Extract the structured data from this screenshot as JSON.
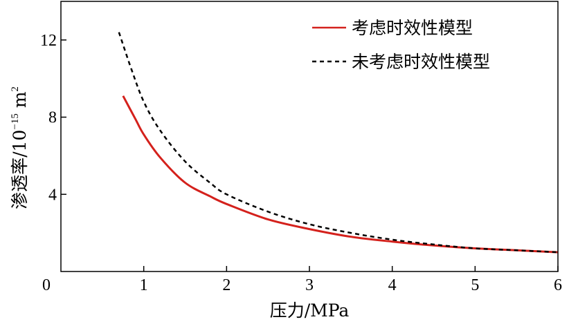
{
  "chart_data": {
    "type": "line",
    "xlabel": "压力/MPa",
    "ylabel_main": "渗透率/10",
    "ylabel_exponent": "−15",
    "ylabel_unit": " m",
    "ylabel_unit_power": "2",
    "xlim": [
      0,
      6
    ],
    "ylim": [
      0,
      14
    ],
    "x_ticks": [
      1,
      2,
      3,
      4,
      5,
      6
    ],
    "x_tick_labels": [
      "1",
      "2",
      "3",
      "4",
      "5",
      "6"
    ],
    "y_ticks": [
      4,
      8,
      12
    ],
    "y_tick_labels": [
      "4",
      "8",
      "12"
    ],
    "origin_label": "0",
    "legend_position": "top-right",
    "grid": false,
    "series": [
      {
        "name": "考虑时效性模型",
        "color": "#d4211c",
        "style": "solid",
        "x": [
          0.75,
          0.9,
          1.0,
          1.2,
          1.5,
          1.8,
          2.0,
          2.5,
          3.0,
          3.5,
          4.0,
          4.5,
          5.0,
          5.5,
          6.0
        ],
        "y": [
          9.1,
          7.9,
          7.1,
          5.9,
          4.6,
          3.9,
          3.5,
          2.7,
          2.2,
          1.8,
          1.55,
          1.35,
          1.2,
          1.1,
          1.0
        ]
      },
      {
        "name": "未考虑时效性模型",
        "color": "#000000",
        "style": "dashed",
        "x": [
          0.7,
          0.85,
          1.0,
          1.2,
          1.5,
          1.8,
          2.0,
          2.5,
          3.0,
          3.5,
          4.0,
          4.5,
          5.0,
          5.5,
          6.0
        ],
        "y": [
          12.4,
          10.5,
          8.8,
          7.3,
          5.7,
          4.6,
          4.0,
          3.1,
          2.45,
          2.0,
          1.65,
          1.4,
          1.2,
          1.1,
          1.0
        ]
      }
    ]
  }
}
